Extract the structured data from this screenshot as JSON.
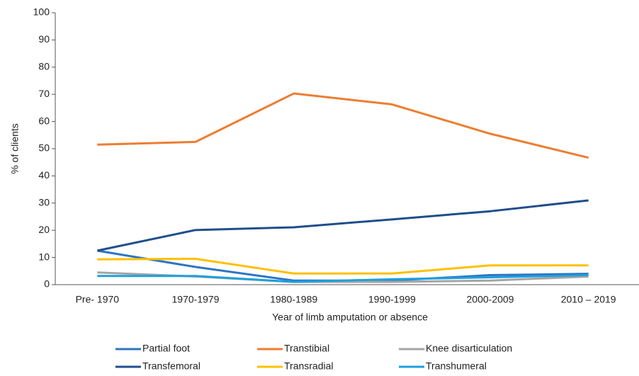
{
  "chart_data": {
    "type": "line",
    "xlabel": "Year of limb amputation or absence",
    "ylabel": "% of clients",
    "categories": [
      "Pre- 1970",
      "1970-1979",
      "1980-1989",
      "1990-1999",
      "2000-2009",
      "2010 – 2019"
    ],
    "series": [
      {
        "name": "Partial foot",
        "color": "#2e75c2",
        "values": [
          12.5,
          6.5,
          1.5,
          1.5,
          3.5,
          4
        ]
      },
      {
        "name": "Transtibial",
        "color": "#ed7d31",
        "values": [
          51.5,
          52.5,
          70.3,
          66.3,
          55.5,
          46.7
        ]
      },
      {
        "name": "Knee disarticulation",
        "color": "#a5a5a5",
        "values": [
          4.5,
          3,
          1,
          1,
          1.5,
          3
        ]
      },
      {
        "name": "Transfemoral",
        "color": "#1f4e8c",
        "values": [
          12.5,
          20.1,
          21.1,
          24,
          27,
          31
        ]
      },
      {
        "name": "Transradial",
        "color": "#ffc000",
        "values": [
          9.3,
          9.5,
          4.1,
          4.1,
          7.1,
          7.1
        ]
      },
      {
        "name": "Transhumeral",
        "color": "#1ea0dc",
        "values": [
          3.2,
          3.2,
          1,
          2,
          2.7,
          3.5
        ]
      }
    ],
    "ylim": [
      0,
      100
    ],
    "yticks": [
      0,
      10,
      20,
      30,
      40,
      50,
      60,
      70,
      80,
      90,
      100
    ],
    "grid": false,
    "legend": "bottom"
  }
}
